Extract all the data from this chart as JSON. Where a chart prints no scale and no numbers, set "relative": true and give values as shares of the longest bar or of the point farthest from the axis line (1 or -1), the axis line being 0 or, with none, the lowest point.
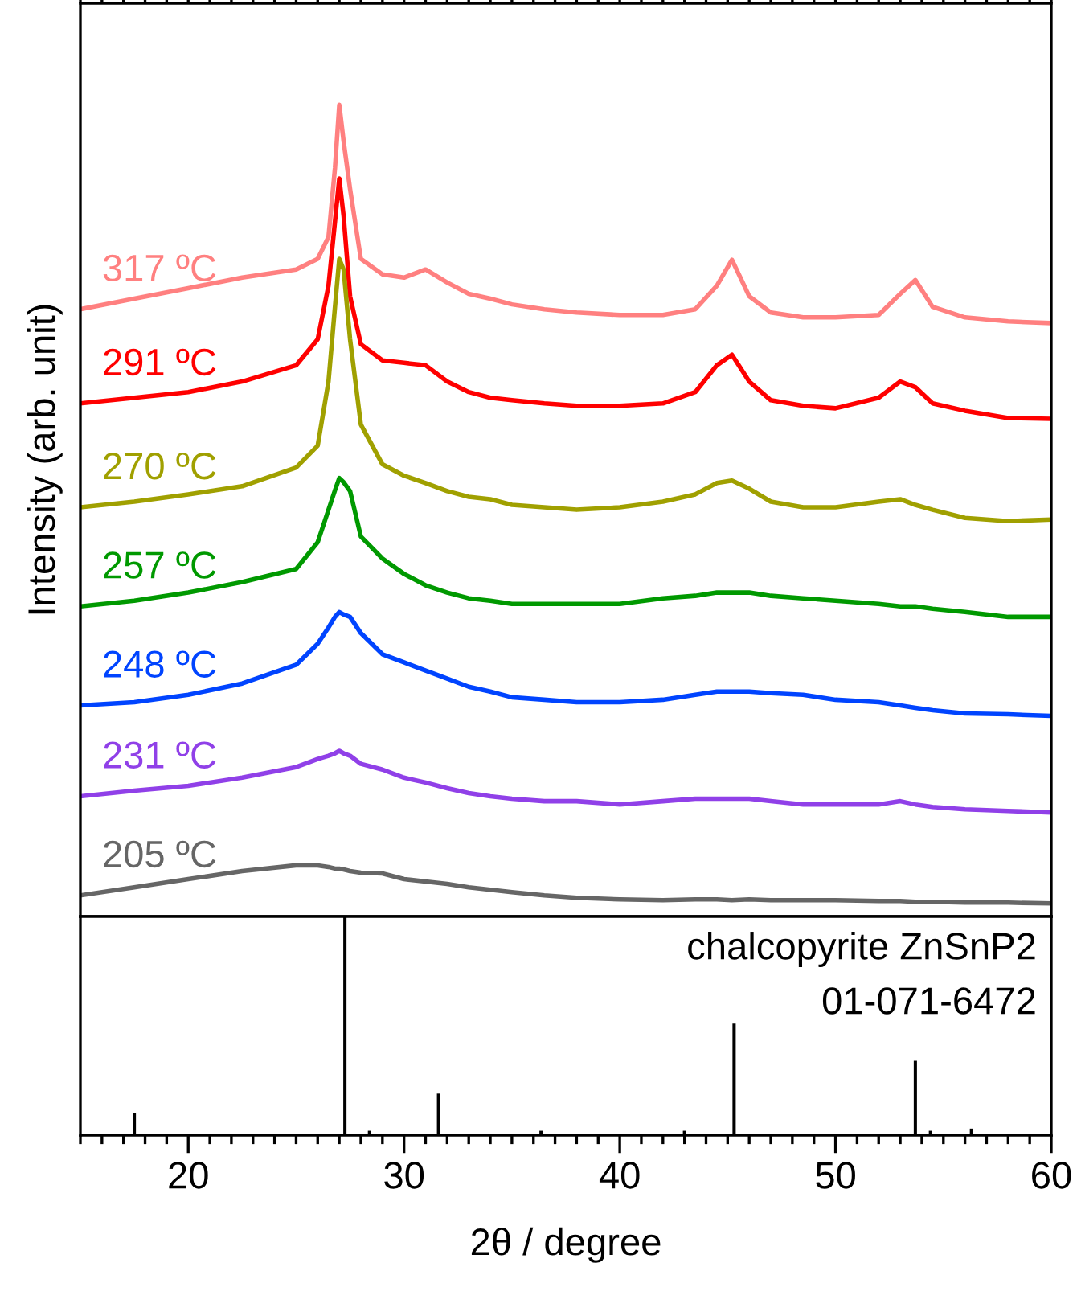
{
  "chart_data": [
    {
      "type": "line",
      "ylabel": "Intensity (arb. unit)",
      "relative": true,
      "xlim": [
        15,
        60
      ],
      "xticks": [
        20,
        30,
        40,
        50,
        60
      ],
      "tick_labels": false,
      "grid": false,
      "x": [
        15,
        17.5,
        20,
        22.5,
        25,
        26,
        26.5,
        26.8,
        27,
        27.2,
        27.5,
        28,
        29,
        30,
        31,
        32,
        33,
        34,
        35,
        36.5,
        38,
        40,
        42,
        43.5,
        44.5,
        45.2,
        46,
        47,
        48.5,
        50,
        52,
        53,
        53.7,
        54.5,
        56,
        58,
        60
      ],
      "series": [
        {
          "name": "317 ºC",
          "color": "#ff8080",
          "values": [
            0.748,
            0.761,
            0.774,
            0.787,
            0.797,
            0.81,
            0.837,
            0.922,
            1.0,
            0.955,
            0.896,
            0.81,
            0.791,
            0.787,
            0.797,
            0.781,
            0.767,
            0.761,
            0.754,
            0.748,
            0.744,
            0.741,
            0.741,
            0.748,
            0.777,
            0.809,
            0.764,
            0.744,
            0.738,
            0.738,
            0.741,
            0.767,
            0.784,
            0.751,
            0.738,
            0.733,
            0.731
          ]
        },
        {
          "name": "291 ºC",
          "color": "#ff0000",
          "values": [
            0.632,
            0.639,
            0.646,
            0.659,
            0.679,
            0.711,
            0.777,
            0.856,
            0.909,
            0.863,
            0.764,
            0.705,
            0.685,
            0.682,
            0.679,
            0.659,
            0.646,
            0.639,
            0.636,
            0.632,
            0.629,
            0.629,
            0.632,
            0.646,
            0.679,
            0.692,
            0.659,
            0.636,
            0.629,
            0.626,
            0.639,
            0.659,
            0.652,
            0.632,
            0.623,
            0.614,
            0.613
          ]
        },
        {
          "name": "270 ºC",
          "color": "#a0a000",
          "values": [
            0.504,
            0.511,
            0.52,
            0.53,
            0.553,
            0.58,
            0.659,
            0.751,
            0.81,
            0.797,
            0.711,
            0.606,
            0.557,
            0.543,
            0.534,
            0.524,
            0.517,
            0.514,
            0.507,
            0.504,
            0.501,
            0.504,
            0.511,
            0.52,
            0.534,
            0.537,
            0.527,
            0.511,
            0.504,
            0.504,
            0.511,
            0.514,
            0.507,
            0.501,
            0.491,
            0.487,
            0.489
          ]
        },
        {
          "name": "257 ºC",
          "color": "#009900",
          "values": [
            0.382,
            0.389,
            0.399,
            0.412,
            0.428,
            0.461,
            0.501,
            0.525,
            0.54,
            0.535,
            0.524,
            0.468,
            0.441,
            0.422,
            0.408,
            0.399,
            0.392,
            0.389,
            0.385,
            0.385,
            0.385,
            0.385,
            0.392,
            0.395,
            0.399,
            0.399,
            0.399,
            0.395,
            0.392,
            0.389,
            0.385,
            0.382,
            0.382,
            0.379,
            0.375,
            0.369,
            0.369
          ]
        },
        {
          "name": "248 ºC",
          "color": "#0044ff",
          "values": [
            0.26,
            0.264,
            0.273,
            0.287,
            0.31,
            0.336,
            0.356,
            0.369,
            0.375,
            0.372,
            0.369,
            0.349,
            0.323,
            0.313,
            0.303,
            0.293,
            0.283,
            0.277,
            0.27,
            0.267,
            0.264,
            0.264,
            0.267,
            0.273,
            0.277,
            0.277,
            0.277,
            0.275,
            0.273,
            0.267,
            0.264,
            0.26,
            0.257,
            0.254,
            0.25,
            0.249,
            0.247
          ]
        },
        {
          "name": "231 ºC",
          "color": "#9040e8",
          "values": [
            0.148,
            0.155,
            0.161,
            0.171,
            0.184,
            0.194,
            0.198,
            0.201,
            0.204,
            0.201,
            0.198,
            0.188,
            0.181,
            0.171,
            0.165,
            0.158,
            0.152,
            0.148,
            0.145,
            0.142,
            0.142,
            0.138,
            0.142,
            0.145,
            0.145,
            0.145,
            0.145,
            0.142,
            0.138,
            0.138,
            0.138,
            0.142,
            0.138,
            0.135,
            0.132,
            0.13,
            0.128
          ]
        },
        {
          "name": "205 ºC",
          "color": "#666666",
          "values": [
            0.026,
            0.036,
            0.046,
            0.056,
            0.063,
            0.063,
            0.061,
            0.059,
            0.059,
            0.058,
            0.056,
            0.054,
            0.053,
            0.046,
            0.043,
            0.04,
            0.036,
            0.033,
            0.03,
            0.026,
            0.023,
            0.021,
            0.02,
            0.021,
            0.021,
            0.02,
            0.021,
            0.02,
            0.02,
            0.02,
            0.019,
            0.019,
            0.018,
            0.018,
            0.017,
            0.017,
            0.016
          ]
        }
      ]
    },
    {
      "type": "bar",
      "xlabel": "2θ / degree",
      "relative": true,
      "color": "#000000",
      "xlim": [
        15,
        60
      ],
      "xticks": [
        20,
        30,
        40,
        50,
        60
      ],
      "tick_labels": "x",
      "annotations": [
        "chalcopyrite ZnSnP2",
        "01-071-6472"
      ],
      "x": [
        17.5,
        27.26,
        28.4,
        31.6,
        36.35,
        43.0,
        45.3,
        53.7,
        54.4,
        56.3
      ],
      "values": [
        0.1,
        1.0,
        0.02,
        0.19,
        0.02,
        0.02,
        0.51,
        0.34,
        0.02,
        0.03
      ]
    }
  ]
}
